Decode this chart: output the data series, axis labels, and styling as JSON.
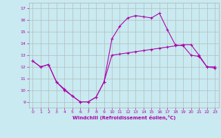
{
  "title": "",
  "xlabel": "Windchill (Refroidissement éolien,°C)",
  "bg_color": "#c8eaf0",
  "line_color": "#aa00aa",
  "xlim": [
    -0.5,
    23.5
  ],
  "ylim": [
    8.5,
    17.5
  ],
  "xticks": [
    0,
    1,
    2,
    3,
    4,
    5,
    6,
    7,
    8,
    9,
    10,
    11,
    12,
    13,
    14,
    15,
    16,
    17,
    18,
    19,
    20,
    21,
    22,
    23
  ],
  "yticks": [
    9,
    10,
    11,
    12,
    13,
    14,
    15,
    16,
    17
  ],
  "series1_x": [
    0,
    1,
    2,
    3,
    4,
    5,
    6,
    7,
    8,
    9,
    10,
    11,
    12,
    13,
    14,
    15,
    16,
    17,
    18,
    19,
    20,
    21,
    22,
    23
  ],
  "series1_y": [
    12.5,
    12.0,
    12.2,
    10.7,
    10.0,
    9.5,
    9.0,
    9.0,
    9.4,
    10.7,
    13.0,
    13.1,
    13.2,
    13.3,
    13.4,
    13.5,
    13.6,
    13.7,
    13.8,
    13.9,
    13.9,
    13.0,
    12.0,
    12.0
  ],
  "series2_x": [
    0,
    1,
    2,
    3,
    4,
    5,
    6,
    7,
    8,
    9,
    10,
    11,
    12,
    13,
    14,
    15,
    16,
    17,
    18,
    19,
    20,
    21,
    22,
    23
  ],
  "series2_y": [
    12.5,
    12.0,
    12.2,
    10.7,
    10.1,
    9.5,
    9.0,
    9.0,
    9.4,
    10.7,
    14.4,
    15.5,
    16.2,
    16.4,
    16.3,
    16.2,
    16.6,
    15.2,
    13.9,
    13.8,
    13.0,
    12.9,
    12.0,
    11.9
  ],
  "grid_color": "#b0b0b0",
  "marker": "+"
}
